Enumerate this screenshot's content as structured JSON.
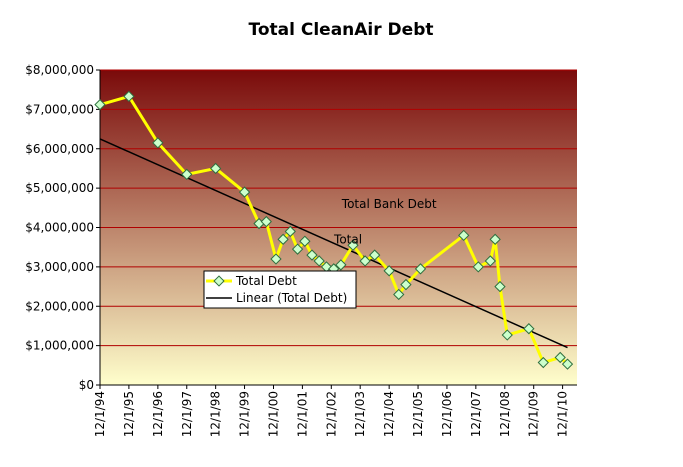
{
  "chart_data": {
    "type": "line",
    "title": "Total CleanAir Debt",
    "xlabel": "",
    "ylabel": "",
    "ylim": [
      0,
      8000000
    ],
    "grid": true,
    "legend_position": "middle-left",
    "colors": {
      "series_line": "#ffff00",
      "marker_fill": "#ccffcc",
      "marker_stroke": "#2f6f3f",
      "trendline": "#000000",
      "gridline": "#b00000",
      "background_top": "#7a0a0a",
      "background_bottom": "#ffffcc"
    },
    "y_tick_labels": [
      "$0",
      "$1,000,000",
      "$2,000,000",
      "$3,000,000",
      "$4,000,000",
      "$5,000,000",
      "$6,000,000",
      "$7,000,000",
      "$8,000,000"
    ],
    "x_tick_labels": [
      "12/1/94",
      "12/1/95",
      "12/1/96",
      "12/1/97",
      "12/1/98",
      "12/1/99",
      "12/1/00",
      "12/1/01",
      "12/1/02",
      "12/1/03",
      "12/1/04",
      "12/1/05",
      "12/1/06",
      "12/1/07",
      "12/1/08",
      "12/1/09",
      "12/1/10"
    ],
    "series": [
      {
        "name": "Total Debt",
        "points": [
          {
            "x": "1994-12-01",
            "y": 7120000
          },
          {
            "x": "1995-12-01",
            "y": 7330000
          },
          {
            "x": "1996-12-01",
            "y": 6150000
          },
          {
            "x": "1997-12-01",
            "y": 5350000
          },
          {
            "x": "1998-12-01",
            "y": 5500000
          },
          {
            "x": "1999-12-01",
            "y": 4900000
          },
          {
            "x": "2000-06-01",
            "y": 4100000
          },
          {
            "x": "2000-09-01",
            "y": 4150000
          },
          {
            "x": "2001-01-01",
            "y": 3200000
          },
          {
            "x": "2001-04-01",
            "y": 3700000
          },
          {
            "x": "2001-07-01",
            "y": 3900000
          },
          {
            "x": "2001-10-01",
            "y": 3450000
          },
          {
            "x": "2002-01-01",
            "y": 3650000
          },
          {
            "x": "2002-04-01",
            "y": 3300000
          },
          {
            "x": "2002-07-01",
            "y": 3150000
          },
          {
            "x": "2002-10-01",
            "y": 3000000
          },
          {
            "x": "2003-01-01",
            "y": 2950000
          },
          {
            "x": "2003-04-01",
            "y": 3050000
          },
          {
            "x": "2003-09-01",
            "y": 3550000
          },
          {
            "x": "2004-02-01",
            "y": 3150000
          },
          {
            "x": "2004-06-01",
            "y": 3300000
          },
          {
            "x": "2004-12-01",
            "y": 2900000
          },
          {
            "x": "2005-04-01",
            "y": 2300000
          },
          {
            "x": "2005-07-01",
            "y": 2550000
          },
          {
            "x": "2006-01-01",
            "y": 2950000
          },
          {
            "x": "2007-07-01",
            "y": 3800000
          },
          {
            "x": "2008-01-01",
            "y": 3000000
          },
          {
            "x": "2008-06-01",
            "y": 3150000
          },
          {
            "x": "2008-08-01",
            "y": 3700000
          },
          {
            "x": "2008-10-01",
            "y": 2500000
          },
          {
            "x": "2009-01-01",
            "y": 1270000
          },
          {
            "x": "2009-10-01",
            "y": 1430000
          },
          {
            "x": "2010-04-01",
            "y": 570000
          },
          {
            "x": "2010-11-01",
            "y": 700000
          },
          {
            "x": "2011-02-01",
            "y": 530000
          }
        ]
      },
      {
        "name": "Linear (Total Debt)",
        "type": "trendline",
        "points": [
          {
            "x": "1994-12-01",
            "y": 6250000
          },
          {
            "x": "2011-02-01",
            "y": 950000
          }
        ]
      }
    ],
    "annotations": [
      {
        "text": "Total Bank Debt",
        "x": "2004-12-01",
        "y": 4500000
      },
      {
        "text": "Total",
        "x": "2003-07-01",
        "y": 3600000
      }
    ]
  }
}
